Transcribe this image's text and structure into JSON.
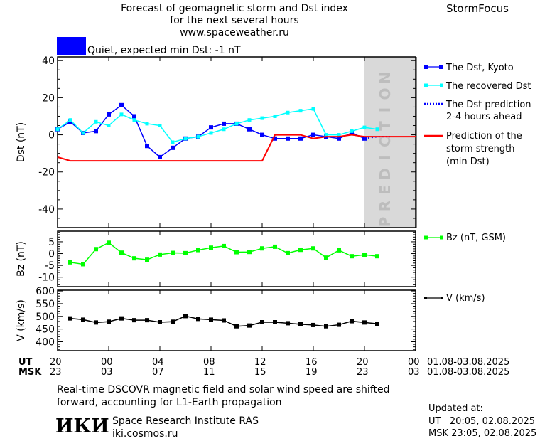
{
  "header": {
    "title_line1": "Forecast of geomagnetic storm and Dst index",
    "title_line2": "for the next several hours",
    "title_line3": "www.spaceweather.ru",
    "brand": "StormFocus",
    "status_text": "Quiet, expected min Dst: -1 nT",
    "status_color": "#0000ff"
  },
  "chart_data": [
    {
      "type": "line",
      "ylabel": "Dst (nT)",
      "ylim": [
        -50,
        42
      ],
      "yticks": [
        "40",
        "20",
        "0",
        "-20",
        "-40"
      ],
      "prediction_band_label": "PREDICTION",
      "prediction_band": {
        "start": "2025-08-02 20:00",
        "end": "2025-08-03 00:00"
      },
      "series": [
        {
          "name": "The Dst, Kyoto",
          "color": "#0000ff",
          "marker": "square",
          "start": "2025-08-01 20:00",
          "step_hours": 1,
          "values": [
            3,
            7,
            1,
            2,
            11,
            16,
            10,
            -6,
            -12,
            -7,
            -2,
            -1,
            4,
            6,
            6,
            3,
            0,
            -2,
            -2,
            -2,
            0,
            -1,
            -2,
            1,
            -2
          ]
        },
        {
          "name": "The recovered Dst",
          "color": "#00ffff",
          "marker": "small-square",
          "start": "2025-08-01 20:00",
          "step_hours": 1,
          "values": [
            3,
            8,
            1,
            7,
            5,
            11,
            8,
            6,
            5,
            -4,
            -2,
            -1,
            1,
            3,
            6,
            8,
            9,
            10,
            12,
            13,
            14,
            0,
            0,
            2,
            4,
            3
          ]
        },
        {
          "name": "The Dst prediction 2-4 hours ahead",
          "color": "#0000ff",
          "style": "dotted",
          "start": "2025-08-02 20:00",
          "step_hours": 1,
          "values": [
            -2,
            -1,
            -1
          ]
        },
        {
          "name": "Prediction of the storm strength (min Dst)",
          "color": "#ff0000",
          "start": "2025-08-01 20:00",
          "step_hours": 1,
          "values": [
            -12,
            -14,
            -14,
            -14,
            -14,
            -14,
            -14,
            -14,
            -14,
            -14,
            -14,
            -14,
            -14,
            -14,
            -14,
            -14,
            -14,
            0,
            0,
            0,
            -2,
            -1,
            -1,
            0,
            -1,
            -1,
            -1,
            -1,
            -1
          ]
        }
      ]
    },
    {
      "type": "line",
      "ylabel": "Bz (nT)",
      "ylim": [
        -14,
        9.5
      ],
      "yticks": [
        "5",
        "0",
        "-5",
        "-10"
      ],
      "series": [
        {
          "name": "Bz (nT, GSM)",
          "color": "#00ff00",
          "start": "2025-08-01 21:00",
          "step_hours": 1,
          "values": [
            -3.7,
            -4.5,
            1.9,
            4.6,
            0.4,
            -2.0,
            -2.6,
            -0.4,
            0.3,
            0.2,
            1.5,
            2.5,
            3.2,
            0.6,
            0.7,
            2.2,
            2.9,
            0.2,
            1.6,
            2.2,
            -1.7,
            1.4,
            -1.1,
            -0.5,
            -1.1
          ]
        }
      ]
    },
    {
      "type": "line",
      "ylabel": "V (km/s)",
      "ylim": [
        365,
        603
      ],
      "yticks": [
        "600",
        "550",
        "500",
        "450",
        "400"
      ],
      "series": [
        {
          "name": "V (km/s)",
          "color": "#000000",
          "start": "2025-08-01 21:00",
          "step_hours": 1,
          "values": [
            492,
            487,
            476,
            479,
            492,
            485,
            485,
            477,
            479,
            501,
            490,
            487,
            484,
            461,
            464,
            477,
            477,
            473,
            469,
            466,
            461,
            467,
            481,
            476,
            471
          ]
        }
      ]
    }
  ],
  "xaxis": {
    "start": "2025-08-01 20:00",
    "end": "2025-08-03 00:00",
    "ut_label": "UT",
    "msk_label": "MSK",
    "ut_ticks": [
      "20",
      "00",
      "04",
      "08",
      "12",
      "16",
      "20",
      "00"
    ],
    "msk_ticks": [
      "23",
      "03",
      "07",
      "11",
      "15",
      "19",
      "23",
      "03"
    ],
    "ut_range": "01.08-03.08.2025",
    "msk_range": "01.08-03.08.2025"
  },
  "footer": {
    "note_line1": "Real-time DSCOVR magnetic field and solar wind speed are shifted",
    "note_line2": "forward, accounting for L1-Earth propagation",
    "logo": "ИКИ",
    "institute": "Space Research Institute RAS",
    "website": "iki.cosmos.ru",
    "updated_label": "Updated at:",
    "updated_ut": "UT   20:05, 02.08.2025",
    "updated_msk": "MSK 23:05, 02.08.2025"
  },
  "legend": {
    "dst_kyoto": "The Dst, Kyoto",
    "recovered": "The recovered Dst",
    "pred_line1": "The Dst prediction",
    "pred_line2": "2-4 hours ahead",
    "storm_line1": "Prediction of the",
    "storm_line2": "storm strength",
    "storm_line3": "(min Dst)",
    "bz": "Bz (nT, GSM)",
    "v": "V (km/s)"
  }
}
